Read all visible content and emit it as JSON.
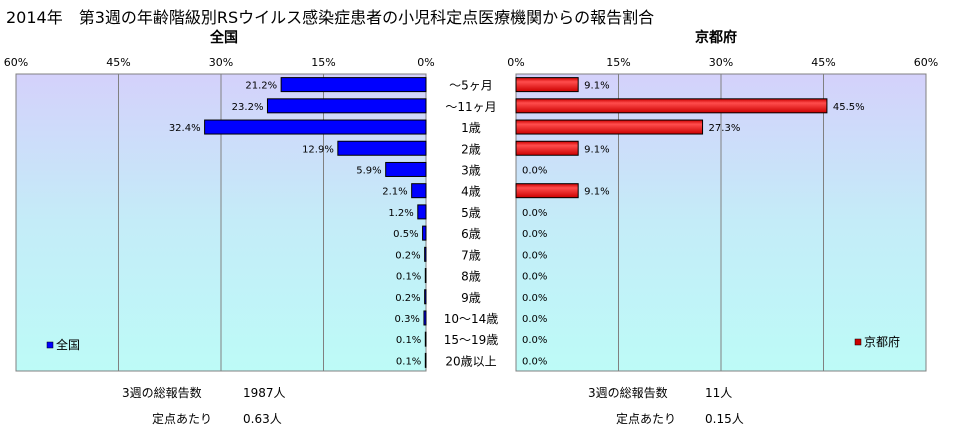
{
  "title": "2014年　第3週の年齢階級別RSウイルス感染症患者の小児科定点医療機関からの報告割合",
  "colors": {
    "left_bar": "#0000ff",
    "right_bar": "#ff0000",
    "grid": "#808080"
  },
  "chart_data": [
    {
      "type": "bar",
      "orientation": "horizontal",
      "title": "全国",
      "axis_direction": "reversed",
      "xlim": [
        0,
        60
      ],
      "ticks": [
        "60%",
        "45%",
        "30%",
        "15%",
        "0%"
      ],
      "legend": "bottom-left",
      "categories": [
        "～5ヶ月",
        "～11ヶ月",
        "1歳",
        "2歳",
        "3歳",
        "4歳",
        "5歳",
        "6歳",
        "7歳",
        "8歳",
        "9歳",
        "10～14歳",
        "15～19歳",
        "20歳以上"
      ],
      "series": [
        {
          "name": "全国",
          "values": [
            21.2,
            23.2,
            32.4,
            12.9,
            5.9,
            2.1,
            1.2,
            0.5,
            0.2,
            0.1,
            0.2,
            0.3,
            0.1,
            0.1
          ],
          "labels": [
            "21.2%",
            "23.2%",
            "32.4%",
            "12.9%",
            "5.9%",
            "2.1%",
            "1.2%",
            "0.5%",
            "0.2%",
            "0.1%",
            "0.2%",
            "0.3%",
            "0.1%",
            "0.1%"
          ]
        }
      ]
    },
    {
      "type": "bar",
      "orientation": "horizontal",
      "title": "京都府",
      "xlim": [
        0,
        60
      ],
      "ticks": [
        "0%",
        "15%",
        "30%",
        "45%",
        "60%"
      ],
      "legend": "bottom-right",
      "categories": [
        "～5ヶ月",
        "～11ヶ月",
        "1歳",
        "2歳",
        "3歳",
        "4歳",
        "5歳",
        "6歳",
        "7歳",
        "8歳",
        "9歳",
        "10～14歳",
        "15～19歳",
        "20歳以上"
      ],
      "series": [
        {
          "name": "京都府",
          "values": [
            9.1,
            45.5,
            27.3,
            9.1,
            0.0,
            9.1,
            0.0,
            0.0,
            0.0,
            0.0,
            0.0,
            0.0,
            0.0,
            0.0
          ],
          "labels": [
            "9.1%",
            "45.5%",
            "27.3%",
            "9.1%",
            "0.0%",
            "9.1%",
            "0.0%",
            "0.0%",
            "0.0%",
            "0.0%",
            "0.0%",
            "0.0%",
            "0.0%",
            "0.0%"
          ]
        }
      ]
    }
  ],
  "footer": {
    "left": {
      "total_label": "3週の総報告数",
      "total_value": "1987人",
      "per_label": "定点あたり",
      "per_value": "0.63人"
    },
    "right": {
      "total_label": "3週の総報告数",
      "total_value": "11人",
      "per_label": "定点あたり",
      "per_value": "0.15人"
    }
  }
}
